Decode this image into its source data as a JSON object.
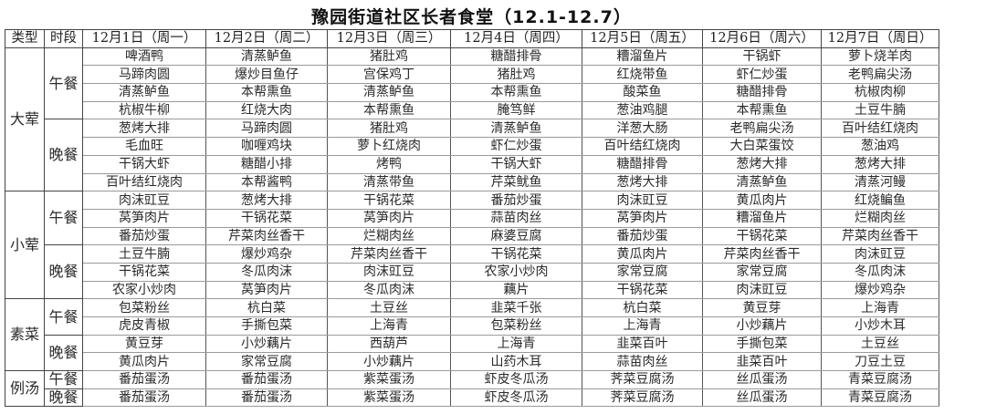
{
  "title": "豫园街道社区长者食堂（12.1-12.7）",
  "headers": [
    "类型",
    "时段",
    "12月1日（周一）",
    "12月2日（周二）",
    "12月3日（周三）",
    "12月4日（周四）",
    "12月5日（周五）",
    "12月6日（周六）",
    "12月7日（周日）"
  ],
  "categories": [
    {
      "name": "大荤",
      "meals": [
        {
          "name": "午餐",
          "rows": [
            [
              "啤酒鸭",
              "清蒸鲈鱼",
              "猪肚鸡",
              "糖醋排骨",
              "糟溜鱼片",
              "干锅虾",
              "萝卜烧羊肉"
            ],
            [
              "马蹄肉圆",
              "爆炒目鱼仔",
              "宫保鸡丁",
              "猪肚鸡",
              "红烧带鱼",
              "虾仁炒蛋",
              "老鸭扁尖汤"
            ],
            [
              "清蒸鲈鱼",
              "本帮熏鱼",
              "清蒸鲈鱼",
              "本帮熏鱼",
              "酸菜鱼",
              "糖醋排骨",
              "杭椒肉柳"
            ],
            [
              "杭椒牛柳",
              "红烧大肉",
              "本帮熏鱼",
              "腌笃鲜",
              "葱油鸡腿",
              "本帮熏鱼",
              "土豆牛腩"
            ]
          ]
        },
        {
          "name": "晚餐",
          "rows": [
            [
              "葱烤大排",
              "马蹄肉圆",
              "猪肚鸡",
              "清蒸鲈鱼",
              "洋葱大肠",
              "老鸭扁尖汤",
              "百叶结红烧肉"
            ],
            [
              "毛血旺",
              "咖喱鸡块",
              "萝卜红烧肉",
              "虾仁炒蛋",
              "百叶结红烧肉",
              "大白菜蛋饺",
              "葱油鸡"
            ],
            [
              "干锅大虾",
              "糖醋小排",
              "烤鸭",
              "干锅大虾",
              "糖醋排骨",
              "葱烤大排",
              "葱烤大排"
            ],
            [
              "百叶结红烧肉",
              "本帮酱鸭",
              "清蒸带鱼",
              "芹菜鱿鱼",
              "葱烤大排",
              "清蒸鲈鱼",
              "清蒸河鳗"
            ]
          ]
        }
      ]
    },
    {
      "name": "小荤",
      "meals": [
        {
          "name": "午餐",
          "rows": [
            [
              "肉沫豇豆",
              "葱烤大排",
              "干锅花菜",
              "番茄炒蛋",
              "肉沫豇豆",
              "黄瓜肉片",
              "红烧鳊鱼"
            ],
            [
              "莴笋肉片",
              "干锅花菜",
              "莴笋肉片",
              "蒜苗肉丝",
              "莴笋肉片",
              "糟溜鱼片",
              "烂糊肉丝"
            ],
            [
              "番茄炒蛋",
              "芹菜肉丝香干",
              "烂糊肉丝",
              "麻婆豆腐",
              "番茄炒蛋",
              "干锅花菜",
              "芹菜肉丝香干"
            ]
          ]
        },
        {
          "name": "晚餐",
          "rows": [
            [
              "土豆牛腩",
              "爆炒鸡杂",
              "芹菜肉丝香干",
              "干锅花菜",
              "黄瓜肉片",
              "芹菜肉丝香干",
              "肉沫豇豆"
            ],
            [
              "干锅花菜",
              "冬瓜肉沫",
              "肉沫豇豆",
              "农家小炒肉",
              "家常豆腐",
              "家常豆腐",
              "冬瓜肉沫"
            ],
            [
              "农家小炒肉",
              "莴笋肉片",
              "冬瓜肉沫",
              "藕片",
              "干锅花菜",
              "肉沫豇豆",
              "爆炒鸡杂"
            ]
          ]
        }
      ]
    },
    {
      "name": "素菜",
      "meals": [
        {
          "name": "午餐",
          "rows": [
            [
              "包菜粉丝",
              "杭白菜",
              "土豆丝",
              "韭菜千张",
              "杭白菜",
              "黄豆芽",
              "上海青"
            ],
            [
              "虎皮青椒",
              "手撕包菜",
              "上海青",
              "包菜粉丝",
              "上海青",
              "小炒藕片",
              "小炒木耳"
            ]
          ]
        },
        {
          "name": "晚餐",
          "rows": [
            [
              "黄豆芽",
              "小炒藕片",
              "西葫芦",
              "上海青",
              "韭菜百叶",
              "手撕包菜",
              "土豆丝"
            ],
            [
              "黄瓜肉片",
              "家常豆腐",
              "小炒藕片",
              "山药木耳",
              "蒜苗肉丝",
              "韭菜百叶",
              "刀豆土豆"
            ]
          ]
        }
      ]
    },
    {
      "name": "例汤",
      "meals": [
        {
          "name": "午餐",
          "rows": [
            [
              "番茄蛋汤",
              "番茄蛋汤",
              "紫菜蛋汤",
              "虾皮冬瓜汤",
              "荠菜豆腐汤",
              "丝瓜蛋汤",
              "青菜豆腐汤"
            ]
          ]
        },
        {
          "name": "晚餐",
          "rows": [
            [
              "番茄蛋汤",
              "番茄蛋汤",
              "紫菜蛋汤",
              "虾皮冬瓜汤",
              "荠菜豆腐汤",
              "丝瓜蛋汤",
              "青菜豆腐汤"
            ]
          ]
        }
      ]
    }
  ]
}
